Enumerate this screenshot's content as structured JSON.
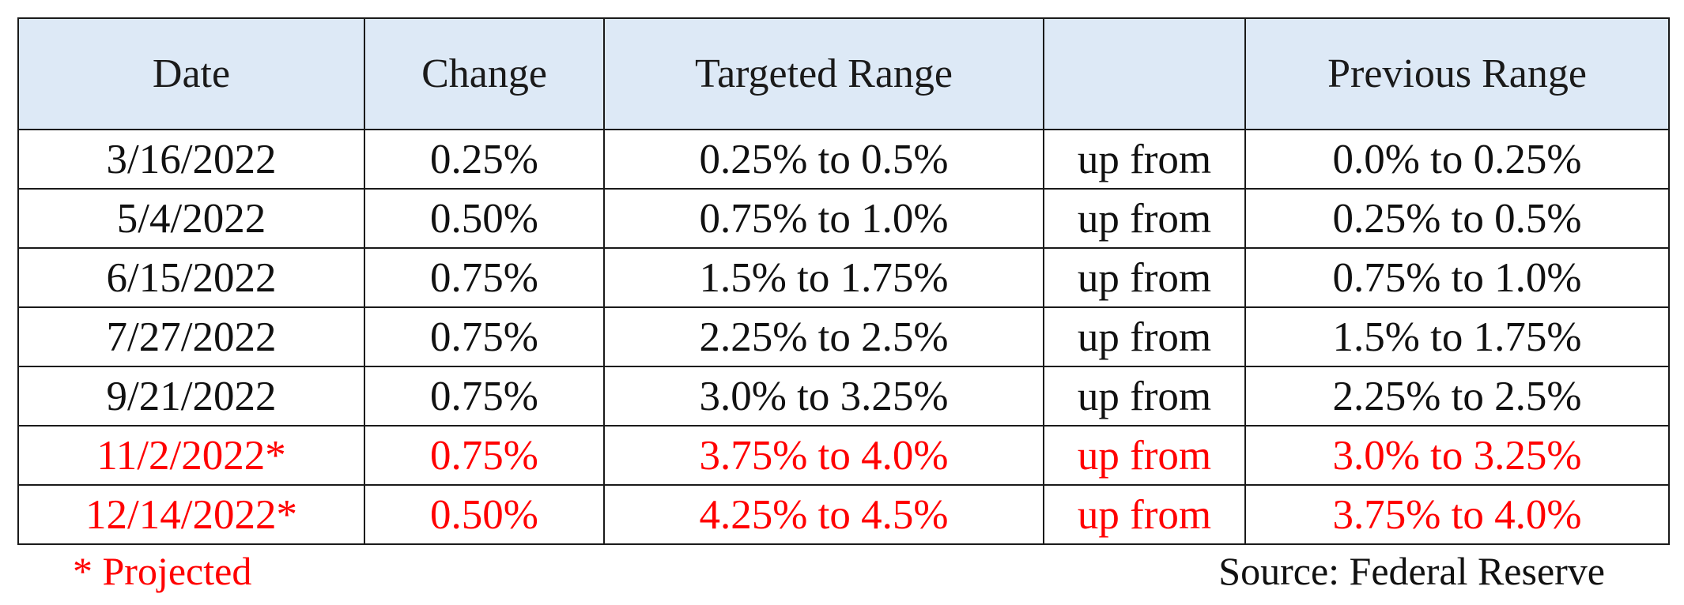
{
  "chart_data": {
    "type": "table",
    "columns": [
      "Date",
      "Change",
      "Targeted Range",
      "",
      "Previous Range"
    ],
    "rows": [
      {
        "date": "3/16/2022",
        "change": "0.25%",
        "targeted_range": "0.25% to 0.5%",
        "connector": "up from",
        "previous_range": "0.0% to 0.25%",
        "projected": false
      },
      {
        "date": "5/4/2022",
        "change": "0.50%",
        "targeted_range": "0.75% to 1.0%",
        "connector": "up from",
        "previous_range": "0.25% to 0.5%",
        "projected": false
      },
      {
        "date": "6/15/2022",
        "change": "0.75%",
        "targeted_range": "1.5% to 1.75%",
        "connector": "up from",
        "previous_range": "0.75% to 1.0%",
        "projected": false
      },
      {
        "date": "7/27/2022",
        "change": "0.75%",
        "targeted_range": "2.25% to 2.5%",
        "connector": "up from",
        "previous_range": "1.5% to 1.75%",
        "projected": false
      },
      {
        "date": "9/21/2022",
        "change": "0.75%",
        "targeted_range": "3.0% to 3.25%",
        "connector": "up from",
        "previous_range": "2.25% to 2.5%",
        "projected": false
      },
      {
        "date": "11/2/2022*",
        "change": "0.75%",
        "targeted_range": "3.75% to 4.0%",
        "connector": "up from",
        "previous_range": "3.0% to 3.25%",
        "projected": true
      },
      {
        "date": "12/14/2022*",
        "change": "0.50%",
        "targeted_range": "4.25% to 4.5%",
        "connector": "up from",
        "previous_range": "3.75% to 4.0%",
        "projected": true
      }
    ]
  },
  "footnote": "* Projected",
  "source": "Source: Federal Reserve",
  "colors": {
    "header_background": "#dde9f6",
    "projected_text": "#ff0000",
    "text": "#111111",
    "border": "#1a1a1a"
  }
}
